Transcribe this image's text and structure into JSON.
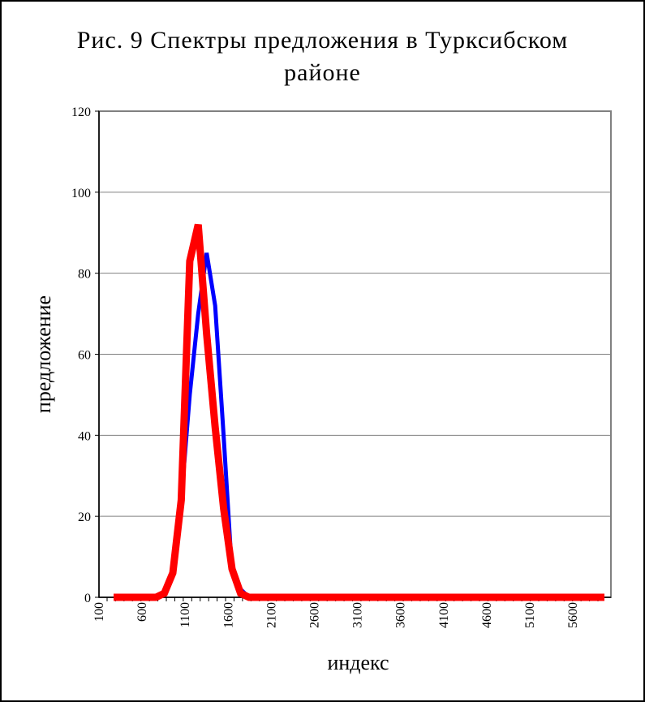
{
  "chart_data": {
    "type": "line",
    "title_line1": "Рис. 9 Спектры предложения в Турксибском",
    "title_line2": "районе",
    "xlabel": "индекс",
    "ylabel": "предложение",
    "ylim": [
      0,
      120
    ],
    "yticks": [
      0,
      20,
      40,
      60,
      80,
      100,
      120
    ],
    "xtick_labels": [
      "100",
      "600",
      "1100",
      "1600",
      "2100",
      "2600",
      "3100",
      "3600",
      "4100",
      "4600",
      "5100",
      "5600"
    ],
    "grid": true,
    "colors": {
      "series_blue": "#0000ff",
      "series_red": "#ff0000",
      "grid": "#808080"
    },
    "series": [
      {
        "color": "#0000ff",
        "values": [
          0,
          0,
          0,
          0,
          0,
          0,
          1,
          6,
          24,
          50,
          70,
          85,
          72,
          40,
          6,
          2,
          0,
          0,
          0,
          0,
          0,
          0,
          0,
          0,
          0,
          0,
          0,
          0,
          0,
          0,
          0,
          0,
          0,
          0,
          0,
          0,
          0,
          0,
          0,
          0,
          0,
          0,
          0,
          0,
          0,
          0,
          0,
          0,
          0,
          0,
          0,
          0,
          0,
          0,
          0,
          0,
          0,
          0,
          0
        ]
      },
      {
        "color": "#ff0000",
        "values": [
          0,
          0,
          0,
          0,
          0,
          0,
          1,
          6,
          24,
          83,
          92,
          65,
          42,
          22,
          7,
          1,
          0,
          0,
          0,
          0,
          0,
          0,
          0,
          0,
          0,
          0,
          0,
          0,
          0,
          0,
          0,
          0,
          0,
          0,
          0,
          0,
          0,
          0,
          0,
          0,
          0,
          0,
          0,
          0,
          0,
          0,
          0,
          0,
          0,
          0,
          0,
          0,
          0,
          0,
          0,
          0,
          0,
          0,
          0
        ]
      }
    ]
  }
}
